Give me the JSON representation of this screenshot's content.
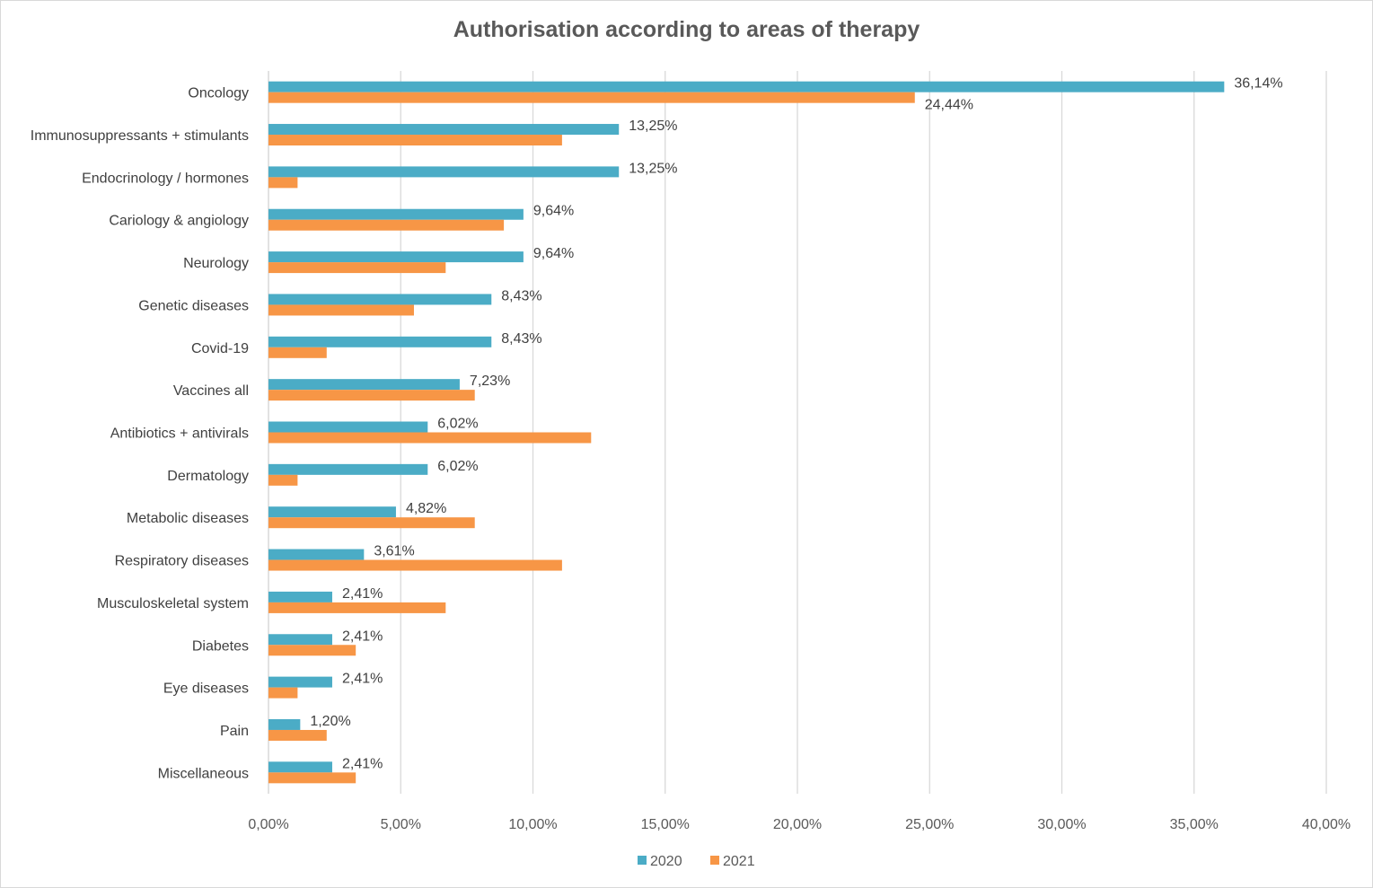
{
  "chart_data": {
    "type": "bar",
    "orientation": "horizontal",
    "title": "Authorisation according to areas of therapy",
    "categories": [
      "Oncology",
      "Immunosuppressants + stimulants",
      "Endocrinology / hormones",
      "Cariology & angiology",
      "Neurology",
      "Genetic diseases",
      "Covid-19",
      "Vaccines all",
      "Antibiotics + antivirals",
      "Dermatology",
      "Metabolic diseases",
      "Respiratory diseases",
      "Musculoskeletal system",
      "Diabetes",
      "Eye diseases",
      "Pain",
      "Miscellaneous"
    ],
    "series": [
      {
        "name": "2020",
        "color": "#4bacc6",
        "values": [
          36.14,
          13.25,
          13.25,
          9.64,
          9.64,
          8.43,
          8.43,
          7.23,
          6.02,
          6.02,
          4.82,
          3.61,
          2.41,
          2.41,
          2.41,
          1.2,
          2.41
        ],
        "labels": [
          "36,14%",
          "13,25%",
          "13,25%",
          "9,64%",
          "9,64%",
          "8,43%",
          "8,43%",
          "7,23%",
          "6,02%",
          "6,02%",
          "4,82%",
          "3,61%",
          "2,41%",
          "2,41%",
          "2,41%",
          "1,20%",
          "2,41%"
        ]
      },
      {
        "name": "2021",
        "color": "#f79646",
        "values": [
          24.44,
          11.1,
          1.1,
          8.9,
          6.7,
          5.5,
          2.2,
          7.8,
          12.2,
          1.1,
          7.8,
          11.1,
          6.7,
          3.3,
          1.1,
          2.2,
          3.3
        ],
        "labels": [
          "24,44%",
          "",
          "",
          "",
          "",
          "",
          "",
          "",
          "",
          "",
          "",
          "",
          "",
          "",
          "",
          "",
          ""
        ]
      }
    ],
    "xlim": [
      0,
      40
    ],
    "xticks": [
      0,
      5,
      10,
      15,
      20,
      25,
      30,
      35,
      40
    ],
    "xtick_labels": [
      "0,00%",
      "5,00%",
      "10,00%",
      "15,00%",
      "20,00%",
      "25,00%",
      "30,00%",
      "35,00%",
      "40,00%"
    ],
    "grid": true,
    "legend_position": "bottom"
  }
}
